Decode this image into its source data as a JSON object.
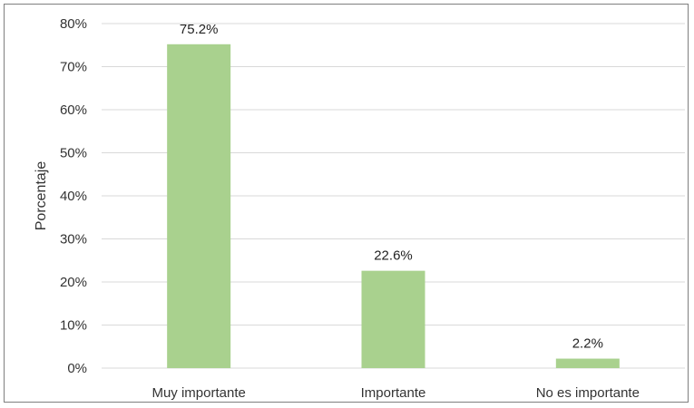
{
  "chart_data": {
    "type": "bar",
    "title": "",
    "xlabel": "",
    "ylabel": "Porcentaje",
    "categories": [
      "Muy importante",
      "Importante",
      "No es importante"
    ],
    "values": [
      75.2,
      22.6,
      2.2
    ],
    "data_labels": [
      "75.2%",
      "22.6%",
      "2.2%"
    ],
    "ylim": [
      0,
      80
    ],
    "yticks": [
      0,
      10,
      20,
      30,
      40,
      50,
      60,
      70,
      80
    ],
    "ytick_labels": [
      "0%",
      "10%",
      "20%",
      "30%",
      "40%",
      "50%",
      "60%",
      "70%",
      "80%"
    ],
    "grid": true,
    "legend": "none",
    "bar_color": "#a9d18e",
    "grid_color": "#d9d9d9"
  }
}
